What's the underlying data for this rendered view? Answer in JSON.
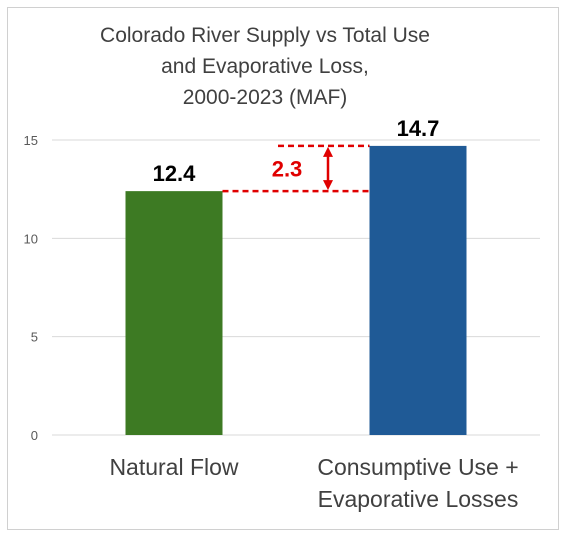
{
  "chart_data": {
    "type": "bar",
    "title_lines": [
      "Colorado River Supply vs Total Use",
      "and Evaporative Loss,",
      "2000-2023 (MAF)"
    ],
    "categories": [
      [
        "Natural Flow"
      ],
      [
        "Consumptive Use +",
        "Evaporative Losses"
      ]
    ],
    "values": [
      12.4,
      14.7
    ],
    "data_labels": [
      "12.4",
      "14.7"
    ],
    "bar_colors": [
      "#3d7a23",
      "#1f5a96"
    ],
    "ylim": [
      0,
      15
    ],
    "yticks": [
      0,
      5,
      10,
      15
    ],
    "grid": true,
    "annotation": {
      "text": "2.3",
      "color": "#e00000",
      "from_value": 12.4,
      "to_value": 14.7
    }
  }
}
